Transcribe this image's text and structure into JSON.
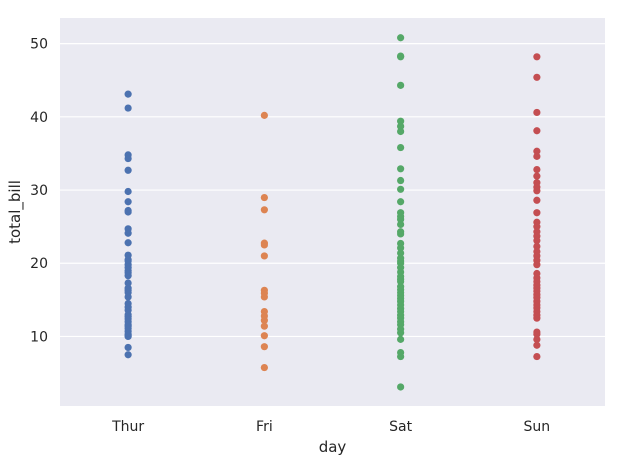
{
  "chart_data": {
    "type": "scatter",
    "title": "",
    "xlabel": "day",
    "ylabel": "total_bill",
    "categories": [
      "Thur",
      "Fri",
      "Sat",
      "Sun"
    ],
    "ylim": [
      0.5,
      53.5
    ],
    "yticks": [
      10,
      20,
      30,
      40,
      50
    ],
    "grid": true,
    "colors": {
      "background": "#eaeaf2",
      "grid": "#ffffff",
      "Thur": "#4c72b0",
      "Fri": "#dd8452",
      "Sat": "#55a868",
      "Sun": "#c44e52"
    },
    "series": [
      {
        "name": "Thur",
        "values": [
          43.1,
          41.2,
          34.8,
          34.3,
          32.7,
          29.8,
          28.4,
          27.2,
          27.0,
          24.7,
          24.1,
          22.8,
          21.1,
          20.5,
          20.3,
          19.8,
          19.4,
          19.0,
          18.7,
          18.3,
          17.3,
          16.6,
          16.3,
          16.0,
          15.4,
          14.5,
          14.0,
          13.6,
          13.0,
          12.7,
          12.4,
          12.0,
          11.6,
          11.4,
          11.1,
          10.7,
          10.3,
          10.1,
          10.0,
          8.5,
          7.5
        ]
      },
      {
        "name": "Fri",
        "values": [
          40.2,
          28.97,
          27.3,
          22.75,
          22.5,
          21.0,
          16.3,
          15.9,
          15.4,
          13.4,
          12.8,
          12.2,
          11.4,
          10.1,
          8.6,
          5.75
        ]
      },
      {
        "name": "Sat",
        "values": [
          50.8,
          48.3,
          48.2,
          44.3,
          39.4,
          38.7,
          38.0,
          35.8,
          32.9,
          31.3,
          30.1,
          28.4,
          26.9,
          26.4,
          26.0,
          25.3,
          24.3,
          24.0,
          22.7,
          22.1,
          21.4,
          20.7,
          20.3,
          20.0,
          19.4,
          18.8,
          18.2,
          17.8,
          17.5,
          16.8,
          16.4,
          16.0,
          15.6,
          15.2,
          14.8,
          14.3,
          13.8,
          13.4,
          12.9,
          12.5,
          12.0,
          11.6,
          11.0,
          10.5,
          9.6,
          7.8,
          7.25,
          3.1
        ]
      },
      {
        "name": "Sun",
        "values": [
          48.2,
          45.4,
          40.6,
          38.1,
          35.3,
          34.6,
          32.8,
          31.9,
          31.0,
          30.4,
          29.9,
          28.6,
          26.9,
          25.6,
          25.0,
          24.3,
          23.7,
          23.1,
          22.3,
          21.6,
          21.0,
          20.4,
          19.8,
          18.6,
          18.0,
          17.5,
          17.0,
          16.6,
          16.2,
          15.7,
          15.3,
          14.8,
          14.3,
          13.9,
          13.4,
          12.9,
          12.5,
          10.6,
          10.3,
          9.6,
          8.8,
          7.25
        ]
      }
    ]
  }
}
